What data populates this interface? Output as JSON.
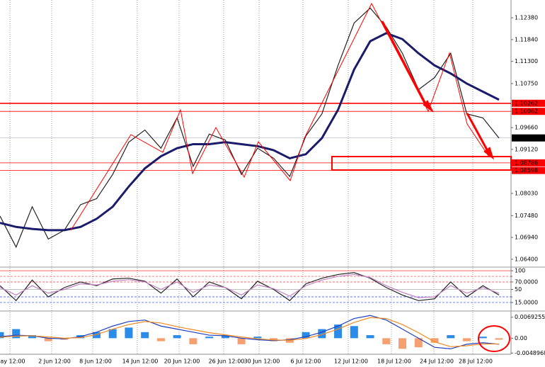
{
  "chart_data": [
    {
      "type": "line",
      "x_labels": [
        "ay 12:00",
        "2 Jun 12:00",
        "8 Jun 12:00",
        "14 Jun 12:00",
        "20 Jun 12:00",
        "26 Jun 12:00",
        "30 Jun 12:00",
        "6 Jul 12:00",
        "12 Jul 12:00",
        "18 Jul 12:00",
        "24 Jul 12:00",
        "28 Jul 12:00"
      ],
      "ylim": [
        1.0624,
        1.1282
      ],
      "yticks": [
        {
          "value": 1.1238,
          "label": "1.12380"
        },
        {
          "value": 1.1184,
          "label": "1.11840"
        },
        {
          "value": 1.113,
          "label": "1.11300"
        },
        {
          "value": 1.1075,
          "label": "1.10750"
        },
        {
          "value": 1.0966,
          "label": "1.09660"
        },
        {
          "value": 1.0912,
          "label": "1.09120"
        },
        {
          "value": 1.0803,
          "label": "1.08030"
        },
        {
          "value": 1.0748,
          "label": "1.07480"
        },
        {
          "value": 1.0694,
          "label": "1.06940"
        },
        {
          "value": 1.064,
          "label": "1.06400"
        }
      ],
      "levels": [
        {
          "value": 1.10262,
          "label": "1.10262"
        },
        {
          "value": 1.10062,
          "label": "1.10062"
        },
        {
          "value": 1.08786,
          "label": "1.08786"
        },
        {
          "value": 1.08598,
          "label": "1.08598"
        }
      ],
      "level_color": "#ff0000",
      "last_price": {
        "value": 1.09404,
        "label": "1.09404"
      },
      "series": [
        {
          "color": "#222222",
          "values": [
            1.0747,
            1.067,
            1.077,
            1.069,
            1.0712,
            1.0775,
            1.079,
            1.085,
            1.093,
            1.096,
            1.0915,
            1.099,
            1.087,
            1.095,
            1.0935,
            1.085,
            1.0915,
            1.089,
            1.0845,
            1.0945,
            1.1,
            1.112,
            1.1225,
            1.1262,
            1.1215,
            1.115,
            1.106,
            1.109,
            1.115,
            1.1,
            1.099,
            1.094
          ]
        },
        {
          "color": "#1b1b6b",
          "values": [
            1.073,
            1.072,
            1.0715,
            1.0712,
            1.0712,
            1.072,
            1.074,
            1.077,
            1.082,
            1.0865,
            1.0895,
            1.0915,
            1.0925,
            1.0925,
            1.093,
            1.0925,
            1.092,
            1.091,
            1.089,
            1.09,
            1.094,
            1.101,
            1.111,
            1.118,
            1.12,
            1.1185,
            1.115,
            1.112,
            1.11,
            1.1075,
            1.1055,
            1.1035
          ]
        }
      ]
    },
    {
      "type": "line",
      "ylim": [
        -6,
        106
      ],
      "yticks": [
        100,
        {
          "value": 85,
          "label": "85.0000"
        },
        {
          "value": 70,
          "label": "70.0000"
        },
        50,
        {
          "value": 30,
          "label": "30.0000"
        },
        {
          "value": 15,
          "label": "15.0000"
        }
      ],
      "series": [
        {
          "color": "#222222",
          "values": [
            60,
            20,
            75,
            30,
            55,
            70,
            60,
            78,
            80,
            72,
            40,
            78,
            30,
            70,
            55,
            25,
            72,
            50,
            20,
            65,
            80,
            90,
            95,
            80,
            55,
            35,
            20,
            25,
            70,
            30,
            60,
            35
          ]
        },
        {
          "color": "#c080c0",
          "values": [
            55,
            35,
            60,
            40,
            50,
            65,
            62,
            72,
            76,
            70,
            50,
            70,
            42,
            62,
            55,
            35,
            62,
            52,
            32,
            60,
            75,
            85,
            90,
            82,
            60,
            42,
            28,
            30,
            60,
            40,
            55,
            40
          ]
        }
      ]
    },
    {
      "type": "macd",
      "ylim": [
        -0.0053,
        0.0085
      ],
      "yticks": [
        0.0069255,
        {
          "value": 0,
          "label": "0.00"
        },
        -0.0048968
      ],
      "histogram": [
        0.002,
        0.003,
        0.001,
        -0.001,
        -0.0005,
        0.001,
        0.002,
        0.003,
        0.0035,
        0.002,
        -0.001,
        0.001,
        -0.002,
        0.0005,
        0.001,
        -0.002,
        0.0005,
        -0.001,
        -0.0015,
        0.002,
        0.003,
        0.0045,
        0.004,
        0.001,
        -0.002,
        -0.0035,
        -0.003,
        -0.0015,
        0.001,
        -0.001,
        0.0005,
        -0.0005
      ],
      "positive_color": "#2a8ce8",
      "negative_color": "#f4a070",
      "series": [
        {
          "color": "#1f3fbf",
          "values": [
            0.0005,
            0.001,
            0.0008,
            0,
            -0.0002,
            0.0005,
            0.002,
            0.004,
            0.0055,
            0.006,
            0.004,
            0.003,
            0.002,
            0.001,
            0.0008,
            0,
            -0.0005,
            -0.0008,
            -0.0005,
            0.0005,
            0.002,
            0.004,
            0.0065,
            0.0075,
            0.006,
            0.003,
            0,
            -0.003,
            -0.0035,
            -0.002,
            -0.0015,
            -0.002
          ]
        },
        {
          "color": "#f08a20",
          "values": [
            0.0003,
            0.0007,
            0.0008,
            0.0004,
            0,
            0.0002,
            0.0012,
            0.003,
            0.0045,
            0.0055,
            0.005,
            0.0038,
            0.0028,
            0.0018,
            0.0011,
            0.0004,
            -0.0002,
            -0.0006,
            -0.0007,
            -0.0001,
            0.0012,
            0.003,
            0.0052,
            0.0068,
            0.0065,
            0.0045,
            0.0018,
            -0.0012,
            -0.0028,
            -0.0025,
            -0.0019,
            -0.0019
          ]
        }
      ]
    }
  ]
}
